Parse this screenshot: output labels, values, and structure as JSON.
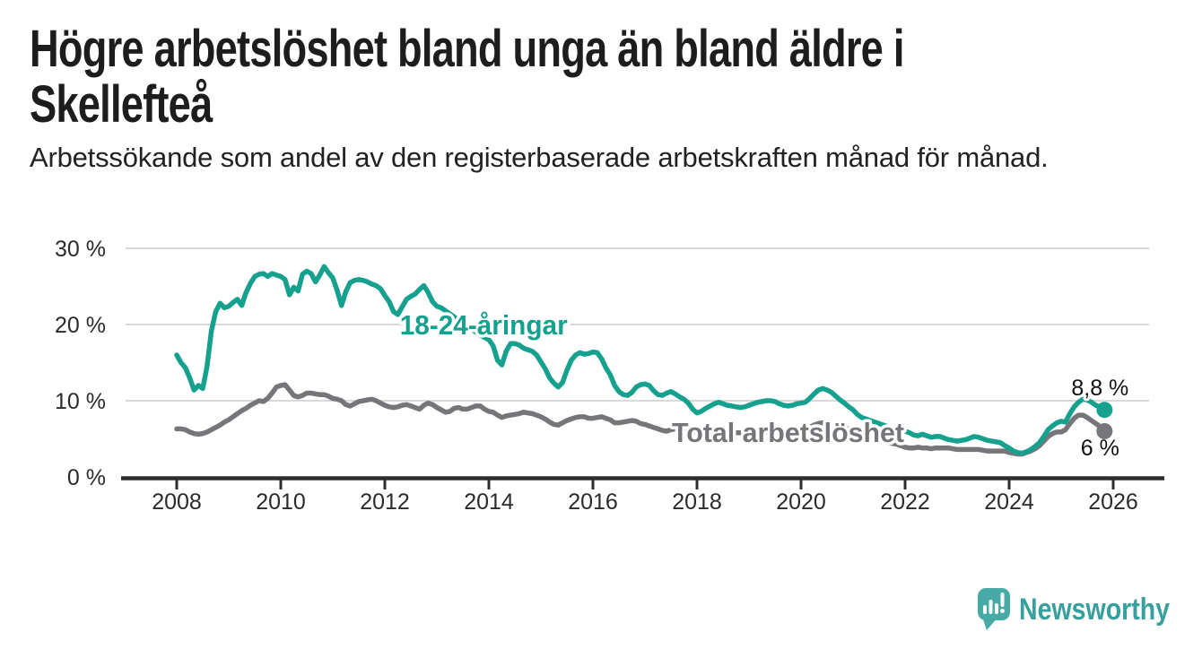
{
  "header": {
    "title": "Högre arbetslöshet bland unga än bland äldre i Skellefteå",
    "subtitle": "Arbetssökande som andel av den registerbaserade arbetskraften månad för månad."
  },
  "footer": {
    "brand": "Newsworthy"
  },
  "colors": {
    "young": "#16a08e",
    "total": "#76767a",
    "grid": "#d9d9d9",
    "axis": "#2d2d2d",
    "tick_text": "#2b2b2b",
    "value_text": "#111111",
    "title_text": "#1d1d1d",
    "logo_text": "#35a09c",
    "logo_bg": "#48aaa6"
  },
  "chart_data": {
    "type": "line",
    "x_start_year": 2008,
    "x_start_month": 1,
    "x_step_months": 1,
    "x_ticks": [
      2008,
      2010,
      2012,
      2014,
      2016,
      2018,
      2020,
      2022,
      2024,
      2026
    ],
    "y_ticks": [
      {
        "value": 0,
        "label": "0 %"
      },
      {
        "value": 10,
        "label": "10 %"
      },
      {
        "value": 20,
        "label": "20 %"
      },
      {
        "value": 30,
        "label": "30 %"
      }
    ],
    "ylim": [
      0,
      30
    ],
    "grid": "horizontal",
    "legend_position": "inline-labels",
    "series": [
      {
        "name": "18-24-åringar",
        "color_key": "young",
        "end_label": "8,8 %",
        "end_label_position": "above",
        "values": [
          16.0,
          15.0,
          14.3,
          13.0,
          11.4,
          12.0,
          11.6,
          14.5,
          19.2,
          21.7,
          22.8,
          22.2,
          22.4,
          22.9,
          23.3,
          22.5,
          24.2,
          25.4,
          26.3,
          26.6,
          26.7,
          26.3,
          26.7,
          26.5,
          26.3,
          25.9,
          23.9,
          24.9,
          24.4,
          26.6,
          27.0,
          26.7,
          25.6,
          26.5,
          27.6,
          26.8,
          26.1,
          24.5,
          22.5,
          24.3,
          25.5,
          25.8,
          25.9,
          25.8,
          25.6,
          25.3,
          25.1,
          24.7,
          23.8,
          23.0,
          21.7,
          21.3,
          22.3,
          23.3,
          23.7,
          24.0,
          24.6,
          25.1,
          24.2,
          23.0,
          22.4,
          22.2,
          21.8,
          21.4,
          21.0,
          20.6,
          20.2,
          19.8,
          19.4,
          19.0,
          18.6,
          18.3,
          18.0,
          17.2,
          15.3,
          14.7,
          16.5,
          17.5,
          17.5,
          17.3,
          16.9,
          16.7,
          16.5,
          16.0,
          15.1,
          14.2,
          13.0,
          12.3,
          11.8,
          12.4,
          14.0,
          15.3,
          16.0,
          16.3,
          16.1,
          16.2,
          16.4,
          16.3,
          15.5,
          14.3,
          13.4,
          12.0,
          11.2,
          10.8,
          10.7,
          11.1,
          11.8,
          12.1,
          12.2,
          12.0,
          11.3,
          10.8,
          10.7,
          11.0,
          11.2,
          10.9,
          10.5,
          10.2,
          9.7,
          8.9,
          8.4,
          8.6,
          9.0,
          9.3,
          9.6,
          9.8,
          9.6,
          9.4,
          9.3,
          9.2,
          9.1,
          9.2,
          9.4,
          9.6,
          9.8,
          9.9,
          10.0,
          10.0,
          9.9,
          9.6,
          9.4,
          9.3,
          9.4,
          9.6,
          9.7,
          9.8,
          10.3,
          10.9,
          11.4,
          11.6,
          11.4,
          11.1,
          10.6,
          10.1,
          9.7,
          9.2,
          8.8,
          8.2,
          7.8,
          7.6,
          7.4,
          7.2,
          7.0,
          6.8,
          6.6,
          6.4,
          6.3,
          6.2,
          6.0,
          5.8,
          5.5,
          5.4,
          5.6,
          5.4,
          5.2,
          5.3,
          5.3,
          5.1,
          4.9,
          4.8,
          4.7,
          4.8,
          4.9,
          5.1,
          5.3,
          5.2,
          5.0,
          4.8,
          4.7,
          4.6,
          4.5,
          4.1,
          3.8,
          3.4,
          3.2,
          3.1,
          3.3,
          3.6,
          4.0,
          4.5,
          5.3,
          6.2,
          6.7,
          7.1,
          7.3,
          7.2,
          8.3,
          9.2,
          9.8,
          10.2,
          10.1,
          9.8,
          9.4,
          9.2,
          8.8
        ]
      },
      {
        "name": "Total arbetslöshet",
        "color_key": "total",
        "end_label": "6 %",
        "end_label_position": "below",
        "values": [
          6.3,
          6.3,
          6.2,
          5.9,
          5.7,
          5.6,
          5.7,
          5.9,
          6.2,
          6.5,
          6.8,
          7.2,
          7.5,
          7.9,
          8.3,
          8.7,
          9.0,
          9.4,
          9.7,
          10.0,
          9.9,
          10.3,
          11.0,
          11.8,
          12.0,
          12.1,
          11.4,
          10.7,
          10.5,
          10.7,
          11.0,
          11.0,
          10.9,
          10.8,
          10.8,
          10.6,
          10.3,
          10.2,
          10.0,
          9.5,
          9.3,
          9.6,
          9.9,
          10.0,
          10.1,
          10.2,
          10.0,
          9.7,
          9.4,
          9.2,
          9.1,
          9.2,
          9.4,
          9.5,
          9.3,
          9.1,
          8.9,
          9.4,
          9.7,
          9.5,
          9.1,
          8.8,
          8.5,
          8.6,
          9.0,
          9.1,
          8.9,
          8.9,
          9.1,
          9.3,
          9.3,
          8.9,
          8.6,
          8.5,
          8.1,
          7.8,
          8.0,
          8.1,
          8.2,
          8.3,
          8.5,
          8.4,
          8.3,
          8.1,
          7.9,
          7.6,
          7.2,
          6.9,
          6.8,
          7.1,
          7.4,
          7.6,
          7.8,
          7.9,
          7.9,
          7.7,
          7.7,
          7.8,
          7.9,
          7.7,
          7.5,
          7.1,
          7.1,
          7.2,
          7.3,
          7.4,
          7.3,
          7.0,
          6.9,
          6.7,
          6.5,
          6.3,
          6.1,
          6.0,
          6.2,
          6.3,
          6.2,
          6.1,
          6.0,
          5.9,
          6.0,
          6.1,
          6.2,
          6.1,
          6.1,
          6.0,
          6.0,
          5.9,
          5.9,
          5.8,
          5.8,
          5.8,
          5.9,
          5.9,
          6.0,
          6.0,
          5.9,
          5.9,
          5.8,
          5.8,
          5.7,
          5.8,
          5.9,
          6.0,
          6.1,
          6.2,
          6.5,
          6.8,
          7.0,
          7.1,
          7.0,
          6.9,
          6.7,
          6.5,
          6.4,
          6.3,
          6.2,
          6.0,
          5.7,
          5.5,
          5.3,
          5.1,
          4.9,
          4.7,
          4.5,
          4.4,
          4.3,
          4.1,
          3.9,
          3.8,
          3.8,
          3.9,
          3.8,
          3.8,
          3.7,
          3.8,
          3.8,
          3.8,
          3.8,
          3.7,
          3.6,
          3.6,
          3.6,
          3.6,
          3.6,
          3.6,
          3.5,
          3.4,
          3.4,
          3.4,
          3.4,
          3.4,
          3.2,
          3.1,
          3.0,
          3.0,
          3.2,
          3.4,
          3.7,
          4.1,
          4.7,
          5.3,
          5.7,
          5.9,
          5.9,
          6.2,
          7.0,
          7.7,
          8.1,
          8.1,
          7.8,
          7.4,
          7.0,
          6.6,
          6.0
        ]
      }
    ],
    "annotations": [
      {
        "text": "18-24-åringar",
        "year": 2013.9,
        "value": 20.0,
        "color_key": "young"
      },
      {
        "text": "Total arbetslöshet",
        "year": 2019.75,
        "value": 5.9,
        "color_key": "total"
      }
    ]
  }
}
